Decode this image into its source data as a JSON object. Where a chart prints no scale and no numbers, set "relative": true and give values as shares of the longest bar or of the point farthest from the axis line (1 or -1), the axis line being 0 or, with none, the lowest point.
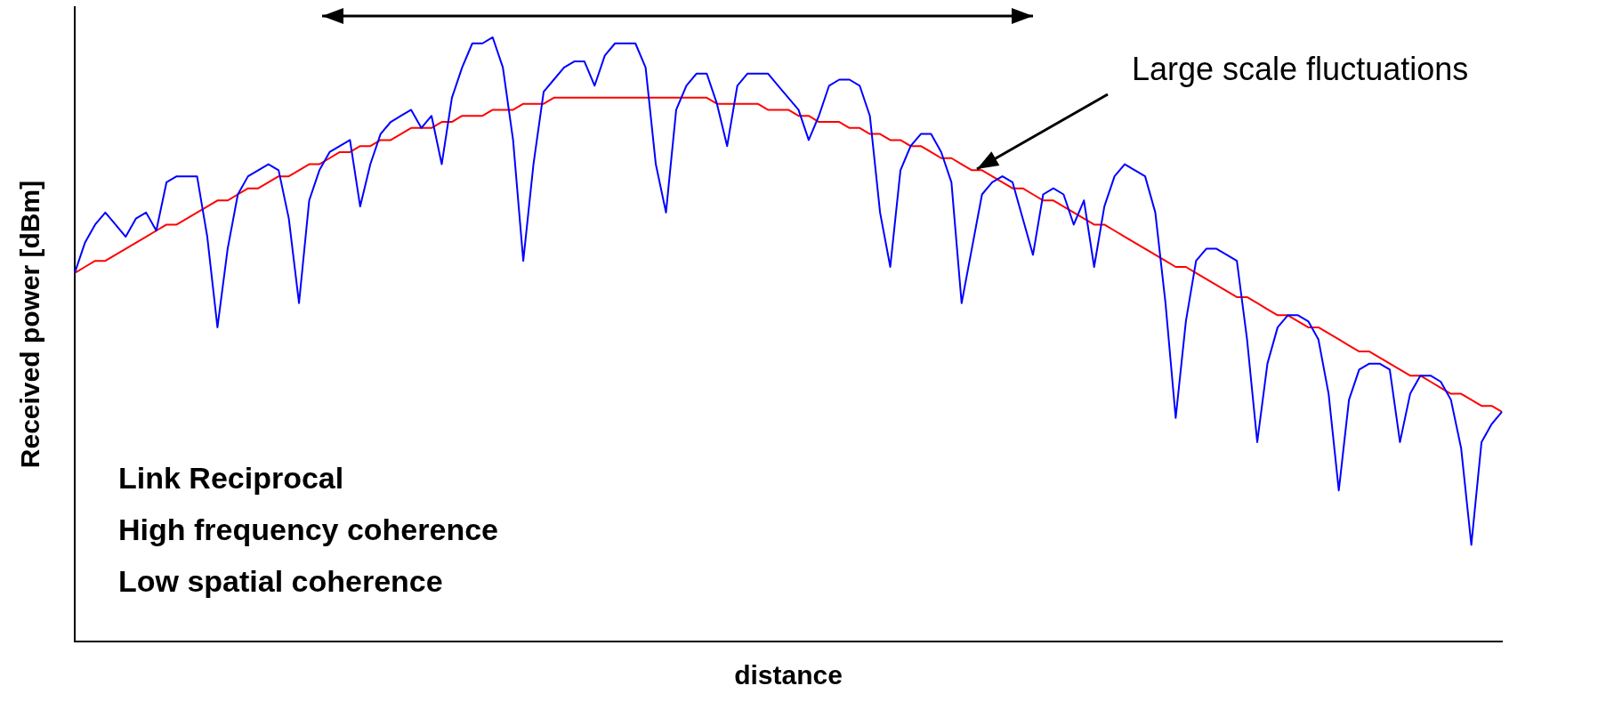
{
  "chart_data": {
    "type": "line",
    "relative": true,
    "xlabel": "distance",
    "ylabel": "Received power [dBm]",
    "annotations": [
      "Large scale fluctuations",
      "Link Reciprocal",
      "High frequency coherence",
      "Low spatial coherence"
    ],
    "categories": [
      null,
      null,
      null,
      null,
      null,
      null,
      null,
      null,
      null,
      null,
      null,
      null,
      null,
      null,
      null,
      null,
      null,
      null,
      null,
      null,
      null,
      null,
      null,
      null,
      null,
      null,
      null,
      null,
      null,
      null,
      null,
      null,
      null,
      null,
      null,
      null,
      null,
      null,
      null,
      null,
      null,
      null,
      null,
      null,
      null,
      null,
      null,
      null,
      null,
      null,
      null,
      null,
      null,
      null,
      null,
      null,
      null,
      null,
      null,
      null,
      null,
      null,
      null,
      null,
      null,
      null,
      null,
      null,
      null,
      null,
      null,
      null,
      null,
      null,
      null,
      null,
      null,
      null,
      null,
      null,
      null,
      null,
      null,
      null,
      null,
      null,
      null,
      null,
      null,
      null,
      null,
      null,
      null,
      null,
      null,
      null,
      null,
      null,
      null,
      null,
      null,
      null,
      null,
      null,
      null,
      null,
      null,
      null,
      null,
      null,
      null,
      null,
      null,
      null,
      null,
      null,
      null,
      null,
      null,
      null,
      null,
      null,
      null,
      null,
      null,
      null,
      null,
      null,
      null,
      null,
      null,
      null,
      null,
      null,
      null,
      null,
      null,
      null,
      null,
      null,
      null
    ],
    "series": [
      {
        "color": "#0000ff",
        "values": [
          0.61,
          0.66,
          0.69,
          0.71,
          0.69,
          0.67,
          0.7,
          0.71,
          0.68,
          0.76,
          0.77,
          0.77,
          0.77,
          0.67,
          0.52,
          0.65,
          0.74,
          0.77,
          0.78,
          0.79,
          0.78,
          0.7,
          0.56,
          0.73,
          0.78,
          0.81,
          0.82,
          0.83,
          0.72,
          0.79,
          0.84,
          0.86,
          0.87,
          0.88,
          0.85,
          0.87,
          0.79,
          0.9,
          0.95,
          0.99,
          0.99,
          1.0,
          0.95,
          0.83,
          0.63,
          0.79,
          0.91,
          0.93,
          0.95,
          0.96,
          0.96,
          0.92,
          0.97,
          0.99,
          0.99,
          0.99,
          0.95,
          0.79,
          0.71,
          0.88,
          0.92,
          0.94,
          0.94,
          0.89,
          0.82,
          0.92,
          0.94,
          0.94,
          0.94,
          0.92,
          0.9,
          0.88,
          0.83,
          0.87,
          0.92,
          0.93,
          0.93,
          0.92,
          0.87,
          0.71,
          0.62,
          0.78,
          0.82,
          0.84,
          0.84,
          0.81,
          0.76,
          0.56,
          0.65,
          0.74,
          0.76,
          0.77,
          0.76,
          0.7,
          0.64,
          0.74,
          0.75,
          0.74,
          0.69,
          0.73,
          0.62,
          0.72,
          0.77,
          0.79,
          0.78,
          0.77,
          0.71,
          0.56,
          0.37,
          0.53,
          0.63,
          0.65,
          0.65,
          0.64,
          0.63,
          0.5,
          0.33,
          0.46,
          0.52,
          0.54,
          0.54,
          0.53,
          0.5,
          0.41,
          0.25,
          0.4,
          0.45,
          0.46,
          0.46,
          0.45,
          0.33,
          0.41,
          0.44,
          0.44,
          0.43,
          0.4,
          0.32,
          0.16,
          0.33,
          0.36,
          0.38
        ]
      },
      {
        "color": "#ff0000",
        "values": [
          0.61,
          0.62,
          0.63,
          0.63,
          0.64,
          0.65,
          0.66,
          0.67,
          0.68,
          0.69,
          0.69,
          0.7,
          0.71,
          0.72,
          0.73,
          0.73,
          0.74,
          0.75,
          0.75,
          0.76,
          0.77,
          0.77,
          0.78,
          0.79,
          0.79,
          0.8,
          0.81,
          0.81,
          0.82,
          0.82,
          0.83,
          0.83,
          0.84,
          0.85,
          0.85,
          0.85,
          0.86,
          0.86,
          0.87,
          0.87,
          0.87,
          0.88,
          0.88,
          0.88,
          0.89,
          0.89,
          0.89,
          0.9,
          0.9,
          0.9,
          0.9,
          0.9,
          0.9,
          0.9,
          0.9,
          0.9,
          0.9,
          0.9,
          0.9,
          0.9,
          0.9,
          0.9,
          0.9,
          0.89,
          0.89,
          0.89,
          0.89,
          0.89,
          0.88,
          0.88,
          0.88,
          0.87,
          0.87,
          0.86,
          0.86,
          0.86,
          0.85,
          0.85,
          0.84,
          0.84,
          0.83,
          0.83,
          0.82,
          0.82,
          0.81,
          0.8,
          0.8,
          0.79,
          0.78,
          0.78,
          0.77,
          0.76,
          0.75,
          0.75,
          0.74,
          0.73,
          0.73,
          0.72,
          0.71,
          0.7,
          0.69,
          0.69,
          0.68,
          0.67,
          0.66,
          0.65,
          0.64,
          0.63,
          0.62,
          0.62,
          0.61,
          0.6,
          0.59,
          0.58,
          0.57,
          0.57,
          0.56,
          0.55,
          0.54,
          0.54,
          0.53,
          0.52,
          0.52,
          0.51,
          0.5,
          0.49,
          0.48,
          0.48,
          0.47,
          0.46,
          0.45,
          0.44,
          0.44,
          0.43,
          0.42,
          0.41,
          0.41,
          0.4,
          0.39,
          0.39,
          0.38
        ]
      }
    ]
  }
}
